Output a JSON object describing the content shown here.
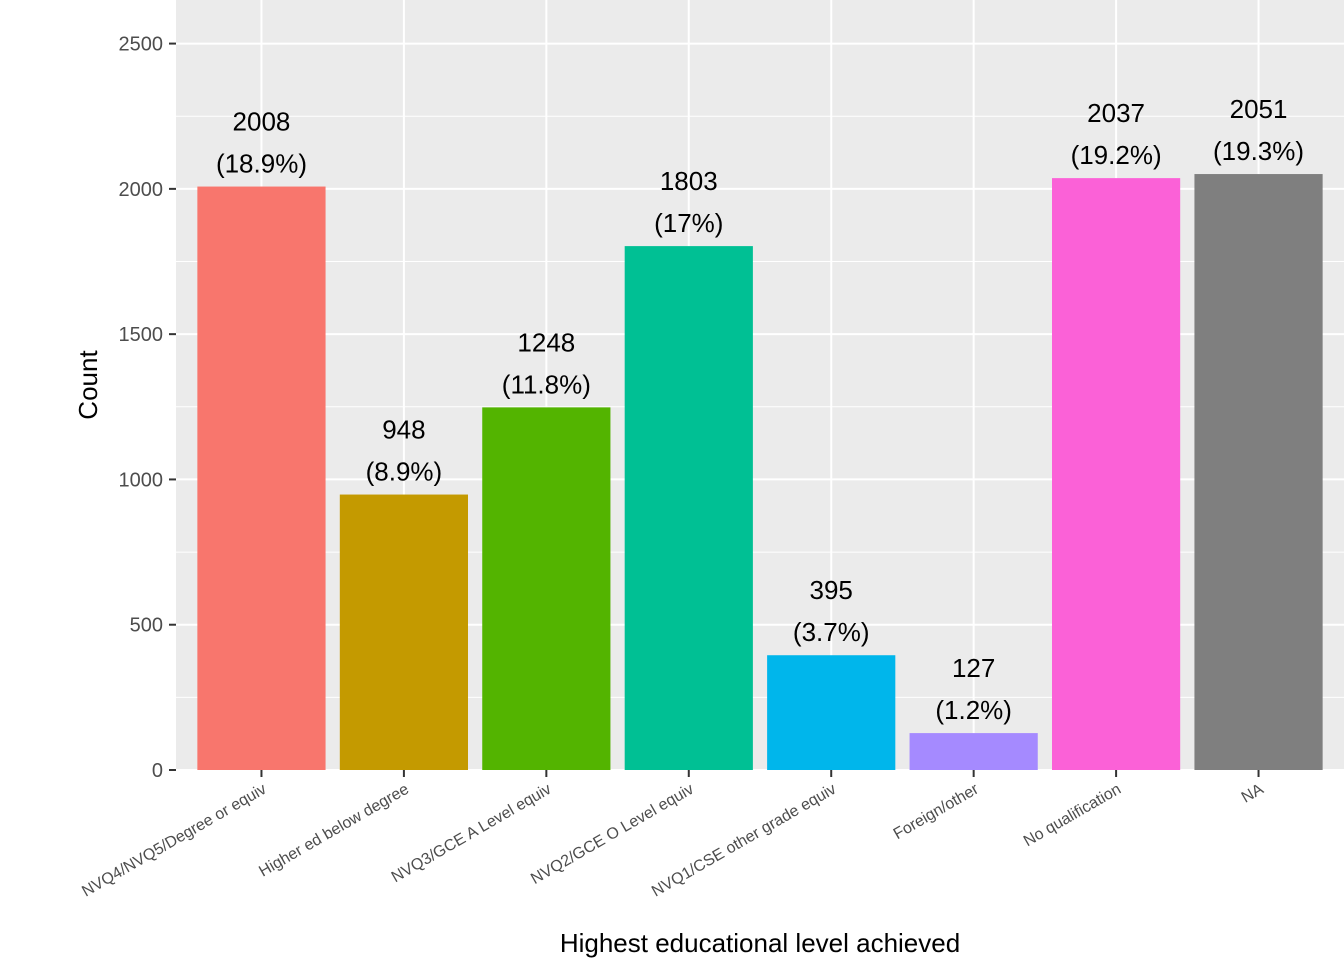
{
  "chart_data": {
    "type": "bar",
    "title": "",
    "xlabel": "Highest educational level achieved",
    "ylabel": "Count",
    "ylim": [
      0,
      2650
    ],
    "yticks": [
      0,
      500,
      1000,
      1500,
      2000,
      2500
    ],
    "ytick_labels": [
      "0",
      "500",
      "1000",
      "1500",
      "2000",
      "2500"
    ],
    "grid": true,
    "legend": "none",
    "categories": [
      "NVQ4/NVQ5/Degree or equiv",
      "Higher ed below degree",
      "NVQ3/GCE A Level equiv",
      "NVQ2/GCE O Level equiv",
      "NVQ1/CSE other grade equiv",
      "Foreign/other",
      "No qualification",
      "NA"
    ],
    "values": [
      2008,
      948,
      1248,
      1803,
      395,
      127,
      2037,
      2051
    ],
    "count_labels": [
      "2008",
      "948",
      "1248",
      "1803",
      "395",
      "127",
      "2037",
      "2051"
    ],
    "percent_labels": [
      "(18.9%)",
      "(8.9%)",
      "(11.8%)",
      "(17%)",
      "(3.7%)",
      "(1.2%)",
      "(19.2%)",
      "(19.3%)"
    ],
    "colors": [
      "#F8766D",
      "#C49A00",
      "#53B400",
      "#00C094",
      "#00B6EB",
      "#A58AFF",
      "#FB61D7",
      "#7F7F7F"
    ],
    "panel_background": "#EBEBEB",
    "grid_color": "#FFFFFF"
  }
}
